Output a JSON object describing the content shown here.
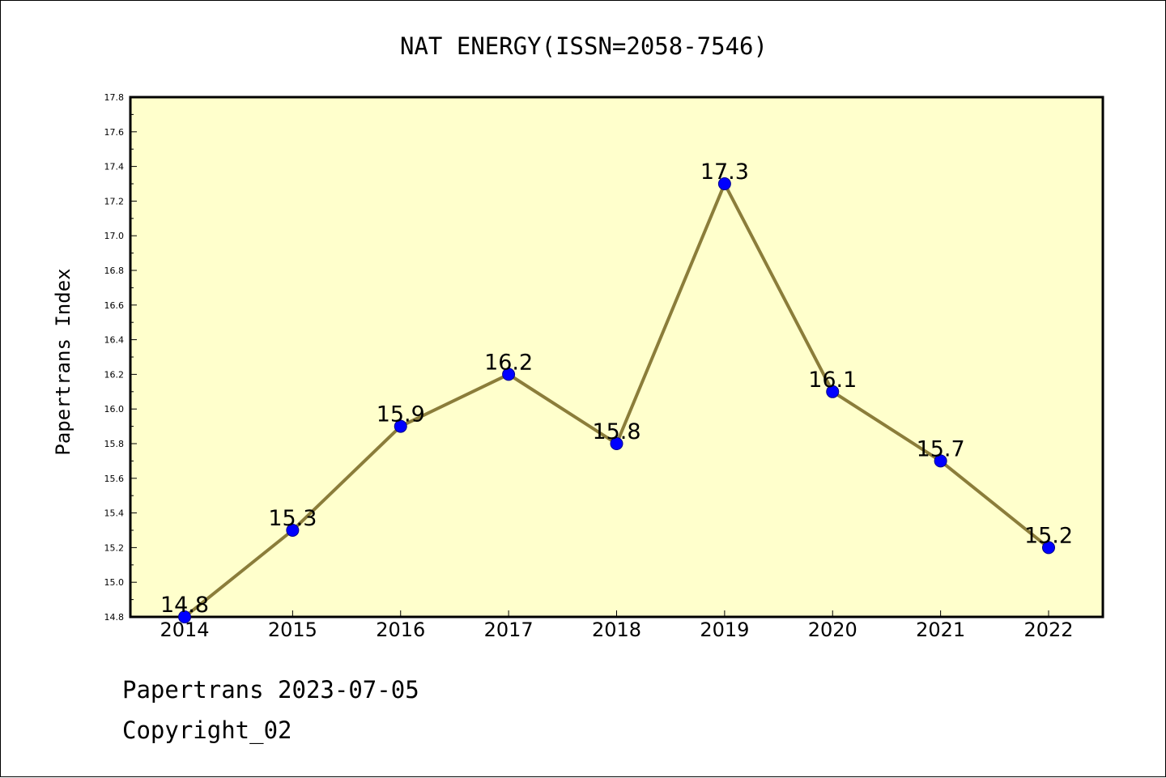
{
  "colors": {
    "plot_background": "#ffffcc",
    "line": "#8b7d3a",
    "marker": "#0000ff",
    "marker_edge": "#00008b",
    "axis": "#000000"
  },
  "chart_data": {
    "type": "line",
    "title": "NAT ENERGY(ISSN=2058-7546)",
    "xlabel": "",
    "ylabel": "Papertrans Index",
    "categories": [
      "2014",
      "2015",
      "2016",
      "2017",
      "2018",
      "2019",
      "2020",
      "2021",
      "2022"
    ],
    "values": [
      14.8,
      15.3,
      15.9,
      16.2,
      15.8,
      17.3,
      16.1,
      15.7,
      15.2
    ],
    "data_labels": [
      "14.8",
      "15.3",
      "15.9",
      "16.2",
      "15.8",
      "17.3",
      "16.1",
      "15.7",
      "15.2"
    ],
    "ylim": [
      14.8,
      17.8
    ],
    "yticks": [
      "14.8",
      "15.0",
      "15.2",
      "15.4",
      "15.6",
      "15.8",
      "16.0",
      "16.2",
      "16.4",
      "16.6",
      "16.8",
      "17.0",
      "17.2",
      "17.4",
      "17.6",
      "17.8"
    ],
    "grid": false,
    "legend": "none"
  },
  "footer": {
    "line1": "Papertrans 2023-07-05",
    "line2": "Copyright_02"
  }
}
